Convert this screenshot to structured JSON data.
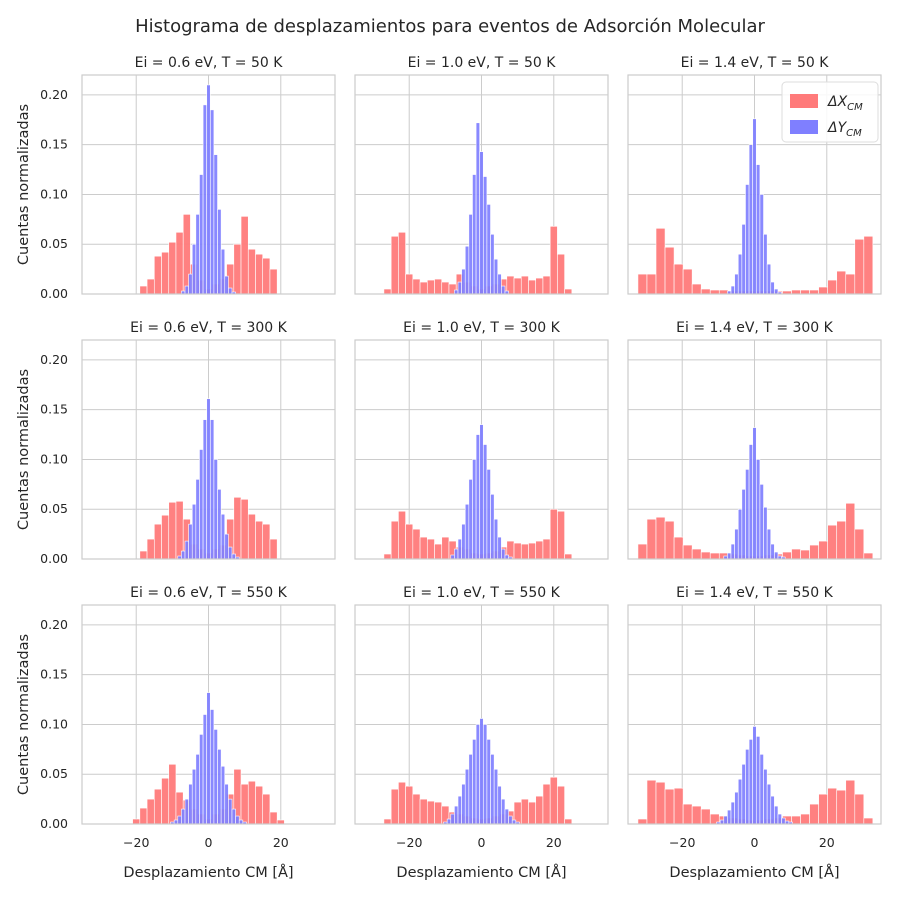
{
  "figure": {
    "title": "Histograma de desplazamientos para eventos de Adsorción Molecular",
    "ylabel": "Cuentas normalizadas",
    "xlabel": "Desplazamiento CM [Å]"
  },
  "legend": {
    "placement": "top-right (panel Ei = 1.4 eV, T = 50 K)",
    "items": [
      {
        "label": "ΔX",
        "sub": "CM",
        "color": "#ff7a7a"
      },
      {
        "label": "ΔY",
        "sub": "CM",
        "color": "#7f7fff"
      }
    ]
  },
  "colors": {
    "x_hist": "#ff7a7a",
    "y_hist": "#7f7fff",
    "grid": "#cccccc",
    "frame": "#cccccc"
  },
  "chart_data": [
    {
      "type": "bar",
      "title": "Ei = 0.6 eV, T = 50 K",
      "xlim": [
        -35,
        35
      ],
      "ylim": [
        0,
        0.22
      ],
      "xticks": [
        -20,
        0,
        20
      ],
      "yticks": [
        0.0,
        0.05,
        0.1,
        0.15,
        0.2
      ],
      "series": [
        {
          "name": "ΔX_CM",
          "bin_centers": [
            -18,
            -16,
            -14,
            -12,
            -10,
            -8,
            -6,
            -4,
            -2,
            0,
            2,
            4,
            6,
            8,
            10,
            12,
            14,
            16,
            18
          ],
          "values": [
            0.008,
            0.015,
            0.038,
            0.042,
            0.052,
            0.062,
            0.08,
            0.03,
            0.014,
            0.005,
            0.01,
            0.015,
            0.03,
            0.05,
            0.078,
            0.045,
            0.04,
            0.036,
            0.025
          ]
        },
        {
          "name": "ΔY_CM",
          "bin_centers": [
            -7,
            -6,
            -5,
            -4,
            -3,
            -2,
            -1,
            0,
            1,
            2,
            3,
            4,
            5,
            6,
            7
          ],
          "values": [
            0.003,
            0.008,
            0.02,
            0.05,
            0.08,
            0.12,
            0.19,
            0.21,
            0.185,
            0.14,
            0.085,
            0.045,
            0.018,
            0.006,
            0.002
          ]
        }
      ]
    },
    {
      "type": "bar",
      "title": "Ei = 1.0 eV, T = 50 K",
      "xlim": [
        -35,
        35
      ],
      "ylim": [
        0,
        0.22
      ],
      "xticks": [
        -20,
        0,
        20
      ],
      "yticks": [
        0.0,
        0.05,
        0.1,
        0.15,
        0.2
      ],
      "series": [
        {
          "name": "ΔX_CM",
          "bin_centers": [
            -26,
            -24,
            -22,
            -20,
            -18,
            -16,
            -14,
            -12,
            -10,
            -8,
            -6,
            -4,
            -2,
            0,
            2,
            4,
            6,
            8,
            10,
            12,
            14,
            16,
            18,
            20,
            22,
            24
          ],
          "values": [
            0.005,
            0.058,
            0.062,
            0.02,
            0.015,
            0.012,
            0.014,
            0.015,
            0.012,
            0.01,
            0.02,
            0.012,
            0.008,
            0.005,
            0.008,
            0.01,
            0.015,
            0.018,
            0.016,
            0.018,
            0.014,
            0.016,
            0.018,
            0.068,
            0.04,
            0.005
          ]
        },
        {
          "name": "ΔY_CM",
          "bin_centers": [
            -7,
            -6,
            -5,
            -4,
            -3,
            -2,
            -1,
            0,
            1,
            2,
            3,
            4,
            5,
            6,
            7
          ],
          "values": [
            0.004,
            0.012,
            0.025,
            0.048,
            0.08,
            0.12,
            0.172,
            0.143,
            0.118,
            0.09,
            0.06,
            0.035,
            0.02,
            0.008,
            0.003
          ]
        }
      ]
    },
    {
      "type": "bar",
      "title": "Ei = 1.4 eV, T = 50 K",
      "xlim": [
        -35,
        35
      ],
      "ylim": [
        0,
        0.22
      ],
      "xticks": [
        -20,
        0,
        20
      ],
      "yticks": [
        0.0,
        0.05,
        0.1,
        0.15,
        0.2
      ],
      "series": [
        {
          "name": "ΔX_CM",
          "bin_centers": [
            -31,
            -28.5,
            -26,
            -23.5,
            -21,
            -18.5,
            -16,
            -13.5,
            -11,
            -8.5,
            -6,
            -3.5,
            -1,
            1.5,
            4,
            6.5,
            9,
            11.5,
            14,
            16.5,
            19,
            21.5,
            24,
            26.5,
            29,
            31.5
          ],
          "values": [
            0.02,
            0.02,
            0.066,
            0.047,
            0.03,
            0.025,
            0.01,
            0.005,
            0.004,
            0.004,
            0.003,
            0.003,
            0.003,
            0.003,
            0.003,
            0.003,
            0.003,
            0.004,
            0.004,
            0.004,
            0.007,
            0.014,
            0.023,
            0.02,
            0.055,
            0.058
          ]
        },
        {
          "name": "ΔY_CM",
          "bin_centers": [
            -7,
            -6,
            -5,
            -4,
            -3,
            -2,
            -1,
            0,
            1,
            2,
            3,
            4,
            5,
            6,
            7
          ],
          "values": [
            0.003,
            0.008,
            0.02,
            0.04,
            0.07,
            0.11,
            0.15,
            0.176,
            0.13,
            0.1,
            0.06,
            0.03,
            0.012,
            0.005,
            0.002
          ]
        }
      ]
    },
    {
      "type": "bar",
      "title": "Ei = 0.6 eV, T = 300 K",
      "xlim": [
        -35,
        35
      ],
      "ylim": [
        0,
        0.22
      ],
      "xticks": [
        -20,
        0,
        20
      ],
      "yticks": [
        0.0,
        0.05,
        0.1,
        0.15,
        0.2
      ],
      "series": [
        {
          "name": "ΔX_CM",
          "bin_centers": [
            -18,
            -16,
            -14,
            -12,
            -10,
            -8,
            -6,
            -4,
            -2,
            0,
            2,
            4,
            6,
            8,
            10,
            12,
            14,
            16,
            18
          ],
          "values": [
            0.008,
            0.02,
            0.035,
            0.044,
            0.057,
            0.058,
            0.04,
            0.015,
            0.01,
            0.006,
            0.01,
            0.014,
            0.04,
            0.062,
            0.06,
            0.045,
            0.038,
            0.035,
            0.02
          ]
        },
        {
          "name": "ΔY_CM",
          "bin_centers": [
            -8,
            -7,
            -6,
            -5,
            -4,
            -3,
            -2,
            -1,
            0,
            1,
            2,
            3,
            4,
            5,
            6,
            7,
            8
          ],
          "values": [
            0.003,
            0.008,
            0.018,
            0.035,
            0.055,
            0.08,
            0.11,
            0.14,
            0.161,
            0.14,
            0.1,
            0.07,
            0.045,
            0.025,
            0.012,
            0.005,
            0.002
          ]
        }
      ]
    },
    {
      "type": "bar",
      "title": "Ei = 1.0 eV, T = 300 K",
      "xlim": [
        -35,
        35
      ],
      "ylim": [
        0,
        0.22
      ],
      "xticks": [
        -20,
        0,
        20
      ],
      "yticks": [
        0.0,
        0.05,
        0.1,
        0.15,
        0.2
      ],
      "series": [
        {
          "name": "ΔX_CM",
          "bin_centers": [
            -26,
            -24,
            -22,
            -20,
            -18,
            -16,
            -14,
            -12,
            -10,
            -8,
            -6,
            -4,
            -2,
            0,
            2,
            4,
            6,
            8,
            10,
            12,
            14,
            16,
            18,
            20,
            22,
            24
          ],
          "values": [
            0.005,
            0.038,
            0.048,
            0.035,
            0.03,
            0.022,
            0.02,
            0.015,
            0.022,
            0.018,
            0.012,
            0.01,
            0.006,
            0.005,
            0.006,
            0.008,
            0.012,
            0.018,
            0.016,
            0.015,
            0.016,
            0.018,
            0.02,
            0.05,
            0.048,
            0.005
          ]
        },
        {
          "name": "ΔY_CM",
          "bin_centers": [
            -8,
            -7,
            -6,
            -5,
            -4,
            -3,
            -2,
            -1,
            0,
            1,
            2,
            3,
            4,
            5,
            6,
            7,
            8
          ],
          "values": [
            0.004,
            0.01,
            0.02,
            0.035,
            0.055,
            0.08,
            0.1,
            0.125,
            0.135,
            0.115,
            0.09,
            0.065,
            0.04,
            0.022,
            0.01,
            0.004,
            0.002
          ]
        }
      ]
    },
    {
      "type": "bar",
      "title": "Ei = 1.4 eV, T = 300 K",
      "xlim": [
        -35,
        35
      ],
      "ylim": [
        0,
        0.22
      ],
      "xticks": [
        -20,
        0,
        20
      ],
      "yticks": [
        0.0,
        0.05,
        0.1,
        0.15,
        0.2
      ],
      "series": [
        {
          "name": "ΔX_CM",
          "bin_centers": [
            -31,
            -28.5,
            -26,
            -23.5,
            -21,
            -18.5,
            -16,
            -13.5,
            -11,
            -8.5,
            -6,
            -3.5,
            -1,
            1.5,
            4,
            6.5,
            9,
            11.5,
            14,
            16.5,
            19,
            21.5,
            24,
            26.5,
            29,
            31.5
          ],
          "values": [
            0.015,
            0.04,
            0.042,
            0.038,
            0.022,
            0.014,
            0.01,
            0.007,
            0.006,
            0.006,
            0.005,
            0.004,
            0.003,
            0.003,
            0.004,
            0.005,
            0.007,
            0.01,
            0.009,
            0.014,
            0.018,
            0.034,
            0.038,
            0.056,
            0.03,
            0.006
          ]
        },
        {
          "name": "ΔY_CM",
          "bin_centers": [
            -8,
            -7,
            -6,
            -5,
            -4,
            -3,
            -2,
            -1,
            0,
            1,
            2,
            3,
            4,
            5,
            6,
            7,
            8
          ],
          "values": [
            0.003,
            0.006,
            0.015,
            0.03,
            0.05,
            0.07,
            0.09,
            0.115,
            0.132,
            0.1,
            0.075,
            0.052,
            0.03,
            0.015,
            0.007,
            0.003,
            0.002
          ]
        }
      ]
    },
    {
      "type": "bar",
      "title": "Ei = 0.6 eV, T = 550 K",
      "xlim": [
        -35,
        35
      ],
      "ylim": [
        0,
        0.22
      ],
      "xticks": [
        -20,
        0,
        20
      ],
      "yticks": [
        0.0,
        0.05,
        0.1,
        0.15,
        0.2
      ],
      "series": [
        {
          "name": "ΔX_CM",
          "bin_centers": [
            -20,
            -18,
            -16,
            -14,
            -12,
            -10,
            -8,
            -6,
            -4,
            -2,
            0,
            2,
            4,
            6,
            8,
            10,
            12,
            14,
            16,
            18,
            20
          ],
          "values": [
            0.005,
            0.016,
            0.025,
            0.035,
            0.046,
            0.06,
            0.032,
            0.024,
            0.015,
            0.01,
            0.005,
            0.01,
            0.015,
            0.03,
            0.055,
            0.04,
            0.043,
            0.038,
            0.03,
            0.012,
            0.004
          ]
        },
        {
          "name": "ΔY_CM",
          "bin_centers": [
            -10,
            -9,
            -8,
            -7,
            -6,
            -5,
            -4,
            -3,
            -2,
            -1,
            0,
            1,
            2,
            3,
            4,
            5,
            6,
            7,
            8,
            9,
            10
          ],
          "values": [
            0.002,
            0.004,
            0.008,
            0.015,
            0.025,
            0.04,
            0.055,
            0.07,
            0.09,
            0.11,
            0.132,
            0.115,
            0.095,
            0.075,
            0.058,
            0.04,
            0.025,
            0.015,
            0.008,
            0.004,
            0.002
          ]
        }
      ]
    },
    {
      "type": "bar",
      "title": "Ei = 1.0 eV, T = 550 K",
      "xlim": [
        -35,
        35
      ],
      "ylim": [
        0,
        0.22
      ],
      "xticks": [
        -20,
        0,
        20
      ],
      "yticks": [
        0.0,
        0.05,
        0.1,
        0.15,
        0.2
      ],
      "series": [
        {
          "name": "ΔX_CM",
          "bin_centers": [
            -26,
            -24,
            -22,
            -20,
            -18,
            -16,
            -14,
            -12,
            -10,
            -8,
            -6,
            -4,
            -2,
            0,
            2,
            4,
            6,
            8,
            10,
            12,
            14,
            16,
            18,
            20,
            22,
            24
          ],
          "values": [
            0.005,
            0.035,
            0.042,
            0.038,
            0.03,
            0.025,
            0.023,
            0.022,
            0.018,
            0.012,
            0.01,
            0.008,
            0.006,
            0.005,
            0.006,
            0.008,
            0.01,
            0.013,
            0.022,
            0.025,
            0.022,
            0.028,
            0.04,
            0.047,
            0.038,
            0.005
          ]
        },
        {
          "name": "ΔY_CM",
          "bin_centers": [
            -10,
            -9,
            -8,
            -7,
            -6,
            -5,
            -4,
            -3,
            -2,
            -1,
            0,
            1,
            2,
            3,
            4,
            5,
            6,
            7,
            8,
            9,
            10
          ],
          "values": [
            0.002,
            0.005,
            0.01,
            0.018,
            0.028,
            0.04,
            0.055,
            0.07,
            0.085,
            0.1,
            0.106,
            0.1,
            0.085,
            0.07,
            0.055,
            0.038,
            0.025,
            0.015,
            0.008,
            0.004,
            0.002
          ]
        }
      ]
    },
    {
      "type": "bar",
      "title": "Ei = 1.4 eV, T = 550 K",
      "xlim": [
        -35,
        35
      ],
      "ylim": [
        0,
        0.22
      ],
      "xticks": [
        -20,
        0,
        20
      ],
      "yticks": [
        0.0,
        0.05,
        0.1,
        0.15,
        0.2
      ],
      "series": [
        {
          "name": "ΔX_CM",
          "bin_centers": [
            -31,
            -28.5,
            -26,
            -23.5,
            -21,
            -18.5,
            -16,
            -13.5,
            -11,
            -8.5,
            -6,
            -3.5,
            -1,
            1.5,
            4,
            6.5,
            9,
            11.5,
            14,
            16.5,
            19,
            21.5,
            24,
            26.5,
            29,
            31.5
          ],
          "values": [
            0.005,
            0.044,
            0.042,
            0.035,
            0.036,
            0.02,
            0.018,
            0.015,
            0.01,
            0.008,
            0.006,
            0.005,
            0.004,
            0.004,
            0.005,
            0.006,
            0.008,
            0.008,
            0.01,
            0.02,
            0.03,
            0.036,
            0.034,
            0.044,
            0.03,
            0.006
          ]
        },
        {
          "name": "ΔY_CM",
          "bin_centers": [
            -10,
            -9,
            -8,
            -7,
            -6,
            -5,
            -4,
            -3,
            -2,
            -1,
            0,
            1,
            2,
            3,
            4,
            5,
            6,
            7,
            8,
            9,
            10
          ],
          "values": [
            0.002,
            0.004,
            0.008,
            0.014,
            0.022,
            0.032,
            0.045,
            0.06,
            0.075,
            0.085,
            0.098,
            0.088,
            0.07,
            0.055,
            0.04,
            0.028,
            0.018,
            0.01,
            0.006,
            0.003,
            0.002
          ]
        }
      ]
    }
  ]
}
